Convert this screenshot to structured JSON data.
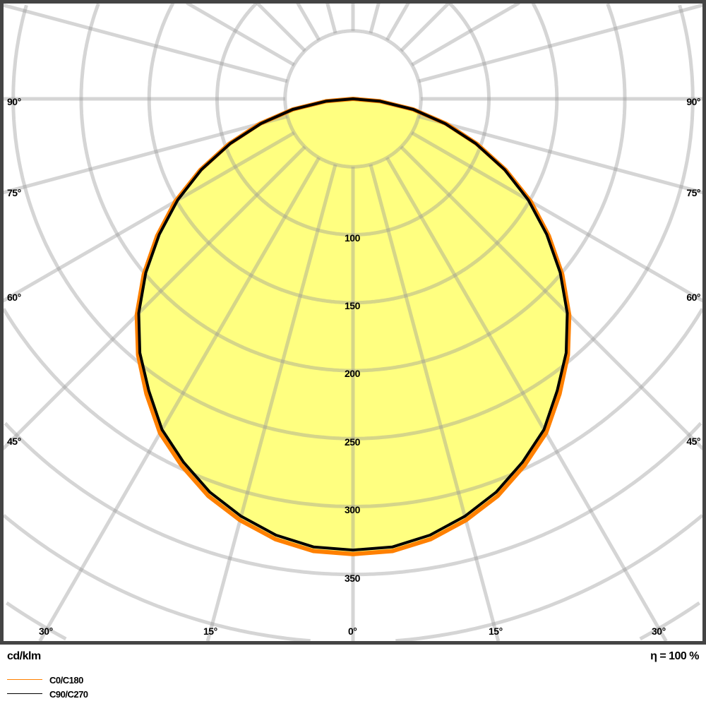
{
  "chart_data": {
    "type": "polar",
    "unit_label": "cd/klm",
    "efficiency_label": "η = 100 %",
    "radial_ticks": [
      100,
      150,
      200,
      250,
      300,
      350
    ],
    "radial_grid_step": 50,
    "radial_max": 450,
    "angle_grid_step_deg": 15,
    "angle_labels": [
      "90°",
      "75°",
      "60°",
      "45°",
      "30°",
      "15°",
      "0°"
    ],
    "angles_deg": [
      0,
      5,
      10,
      15,
      20,
      25,
      30,
      35,
      40,
      45,
      50,
      55,
      60,
      65,
      70,
      75,
      80,
      85,
      90
    ],
    "series": [
      {
        "name": "C0/C180",
        "color": "#ff8000",
        "values": [
          335,
          334,
          329,
          321,
          311,
          298,
          284,
          265,
          246,
          225,
          201,
          176,
          151,
          124,
          97,
          71,
          45,
          20,
          0
        ]
      },
      {
        "name": "C90/C270",
        "color": "#000000",
        "values": [
          332,
          331,
          326,
          318,
          308,
          295,
          281,
          262,
          244,
          223,
          199,
          174,
          149,
          123,
          96,
          70,
          45,
          20,
          0
        ]
      }
    ],
    "fill_color": "#ffff80",
    "grid_color": "#c8c8c8",
    "frame_color": "#444444"
  }
}
